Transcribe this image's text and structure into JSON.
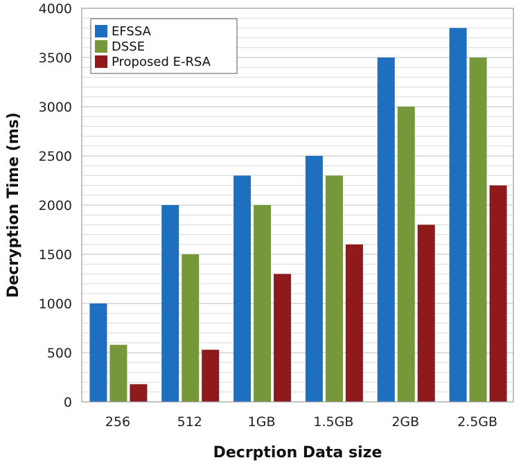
{
  "chart_data": {
    "type": "bar",
    "xlabel": "Decrption Data size",
    "ylabel": "Decryption Time (ms)",
    "categories": [
      "256",
      "512",
      "1GB",
      "1.5GB",
      "2GB",
      "2.5GB"
    ],
    "ylim": [
      0,
      4000
    ],
    "yticks": [
      "0",
      "500",
      "1000",
      "1500",
      "2000",
      "2500",
      "3000",
      "3500",
      "4000"
    ],
    "grid": true,
    "legend_position": "top-left",
    "series": [
      {
        "name": "EFSSA",
        "color": "#1f6fc1",
        "values": [
          1000,
          2000,
          2300,
          2500,
          3500,
          3800
        ]
      },
      {
        "name": "DSSE",
        "color": "#76983a",
        "values": [
          580,
          1500,
          2000,
          2300,
          3000,
          3500
        ]
      },
      {
        "name": "Proposed E-RSA",
        "color": "#8e1a1c",
        "values": [
          180,
          530,
          1300,
          1600,
          1800,
          2200
        ]
      }
    ]
  }
}
